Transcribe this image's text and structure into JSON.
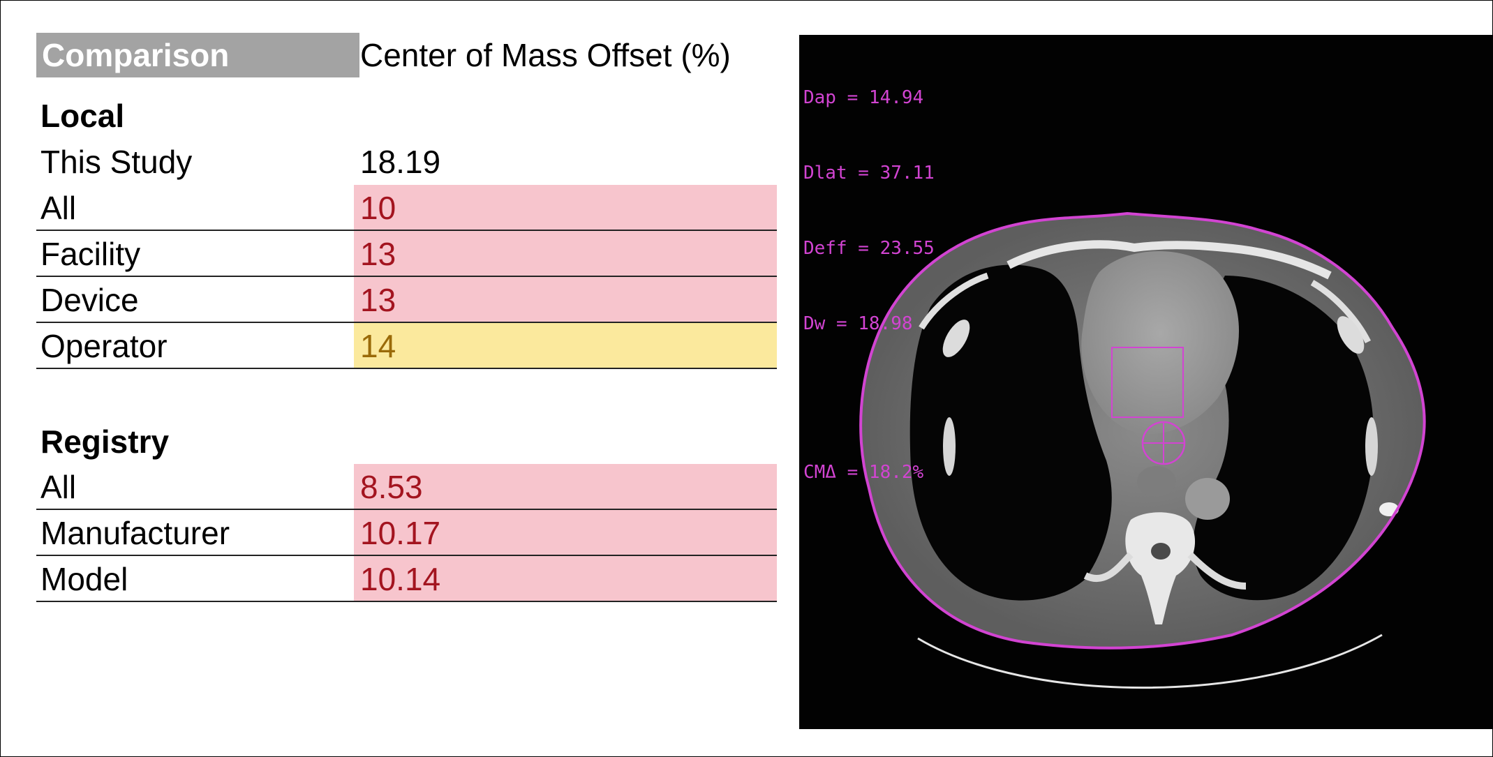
{
  "table": {
    "header": {
      "label": "Comparison",
      "metric": "Center of Mass Offset (%)"
    },
    "local": {
      "title": "Local",
      "rows": [
        {
          "label": "This Study",
          "value": "18.19",
          "highlight": "none"
        },
        {
          "label": "All",
          "value": "10",
          "highlight": "red"
        },
        {
          "label": "Facility",
          "value": "13",
          "highlight": "red"
        },
        {
          "label": "Device",
          "value": "13",
          "highlight": "red"
        },
        {
          "label": "Operator",
          "value": "14",
          "highlight": "yellow"
        }
      ]
    },
    "registry": {
      "title": "Registry",
      "rows": [
        {
          "label": "All",
          "value": "8.53",
          "highlight": "red"
        },
        {
          "label": "Manufacturer",
          "value": "10.17",
          "highlight": "red"
        },
        {
          "label": "Model",
          "value": "10.14",
          "highlight": "red"
        }
      ]
    },
    "colors": {
      "header_bg": "#a3a3a3",
      "red_bg": "#f7c5cd",
      "red_text": "#a3141f",
      "yellow_bg": "#fbe99d",
      "yellow_text": "#9a6a08"
    }
  },
  "ct_image": {
    "readouts": {
      "dap": "Dap = 14.94",
      "dlat": "Dlat = 37.11",
      "deff": "Deff = 23.55",
      "dw": "Dw = 18.98",
      "cm": "CMΔ = 18.2%"
    },
    "colors": {
      "overlay": "#d244d2",
      "background": "#020202"
    }
  }
}
